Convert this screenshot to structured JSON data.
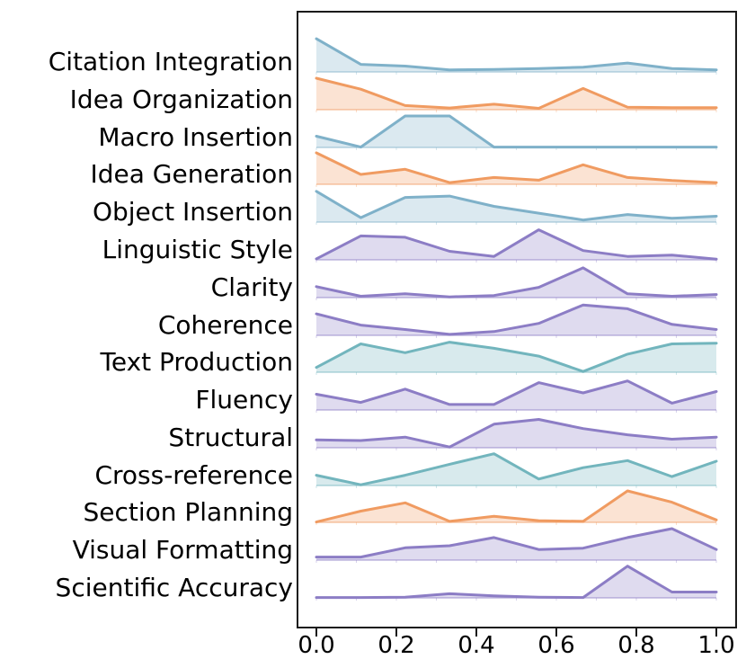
{
  "figure": {
    "kind": "ridgeline-plot",
    "background": "#ffffff",
    "axis_color": "#1a1a1a"
  },
  "colors": {
    "blue": "#7FB1C9",
    "orange": "#F09B61",
    "purple": "#8C7DC5",
    "teal": "#72B5BD"
  },
  "chart_data": {
    "type": "area",
    "variant": "ridgeline",
    "title": "",
    "xlabel": "",
    "ylabel": "",
    "xlim": [
      0,
      1
    ],
    "grid": false,
    "legend": false,
    "x": [
      0,
      0.111,
      0.222,
      0.333,
      0.444,
      0.556,
      0.667,
      0.778,
      0.889,
      1.0
    ],
    "xtick_values": [
      0.0,
      0.2,
      0.4,
      0.6,
      0.8,
      1.0
    ],
    "xtick_labels": [
      "0.0",
      "0.2",
      "0.4",
      "0.6",
      "0.8",
      "1.0"
    ],
    "row_minor_tick_step": 0.1,
    "series": [
      {
        "name": "Citation Integration",
        "color": "blue",
        "values": [
          0.97,
          0.22,
          0.17,
          0.06,
          0.07,
          0.1,
          0.14,
          0.26,
          0.1,
          0.06
        ]
      },
      {
        "name": "Idea Organization",
        "color": "orange",
        "values": [
          0.92,
          0.6,
          0.12,
          0.05,
          0.16,
          0.04,
          0.62,
          0.07,
          0.06,
          0.06
        ]
      },
      {
        "name": "Macro Insertion",
        "color": "blue",
        "values": [
          0.33,
          0.01,
          0.92,
          0.92,
          0.01,
          0.01,
          0.01,
          0.01,
          0.01,
          0.01
        ]
      },
      {
        "name": "Idea Generation",
        "color": "orange",
        "values": [
          0.92,
          0.29,
          0.44,
          0.05,
          0.2,
          0.12,
          0.57,
          0.2,
          0.11,
          0.05
        ]
      },
      {
        "name": "Object Insertion",
        "color": "blue",
        "values": [
          0.9,
          0.13,
          0.72,
          0.76,
          0.46,
          0.26,
          0.06,
          0.22,
          0.11,
          0.17
        ]
      },
      {
        "name": "Linguistic Style",
        "color": "purple",
        "values": [
          0.03,
          0.7,
          0.66,
          0.25,
          0.1,
          0.88,
          0.27,
          0.1,
          0.14,
          0.02
        ]
      },
      {
        "name": "Clarity",
        "color": "purple",
        "values": [
          0.32,
          0.04,
          0.11,
          0.02,
          0.06,
          0.3,
          0.87,
          0.11,
          0.04,
          0.09
        ]
      },
      {
        "name": "Coherence",
        "color": "purple",
        "values": [
          0.63,
          0.3,
          0.17,
          0.03,
          0.11,
          0.35,
          0.89,
          0.78,
          0.32,
          0.17
        ]
      },
      {
        "name": "Text Production",
        "color": "teal",
        "values": [
          0.14,
          0.83,
          0.57,
          0.88,
          0.7,
          0.47,
          0.02,
          0.53,
          0.83,
          0.85
        ]
      },
      {
        "name": "Fluency",
        "color": "purple",
        "values": [
          0.46,
          0.22,
          0.61,
          0.16,
          0.16,
          0.8,
          0.5,
          0.85,
          0.2,
          0.54
        ]
      },
      {
        "name": "Structural",
        "color": "purple",
        "values": [
          0.23,
          0.21,
          0.31,
          0.02,
          0.69,
          0.83,
          0.56,
          0.38,
          0.25,
          0.31
        ]
      },
      {
        "name": "Cross-reference",
        "color": "teal",
        "values": [
          0.3,
          0.02,
          0.3,
          0.62,
          0.93,
          0.19,
          0.52,
          0.73,
          0.26,
          0.71
        ]
      },
      {
        "name": "Section Planning",
        "color": "orange",
        "values": [
          0.01,
          0.33,
          0.57,
          0.03,
          0.18,
          0.05,
          0.03,
          0.92,
          0.59,
          0.07
        ]
      },
      {
        "name": "Visual Formatting",
        "color": "purple",
        "values": [
          0.09,
          0.09,
          0.36,
          0.42,
          0.66,
          0.31,
          0.35,
          0.66,
          0.92,
          0.31
        ]
      },
      {
        "name": "Scientific Accuracy",
        "color": "purple",
        "values": [
          0.01,
          0.01,
          0.02,
          0.12,
          0.06,
          0.02,
          0.01,
          0.93,
          0.17,
          0.17
        ]
      }
    ]
  }
}
